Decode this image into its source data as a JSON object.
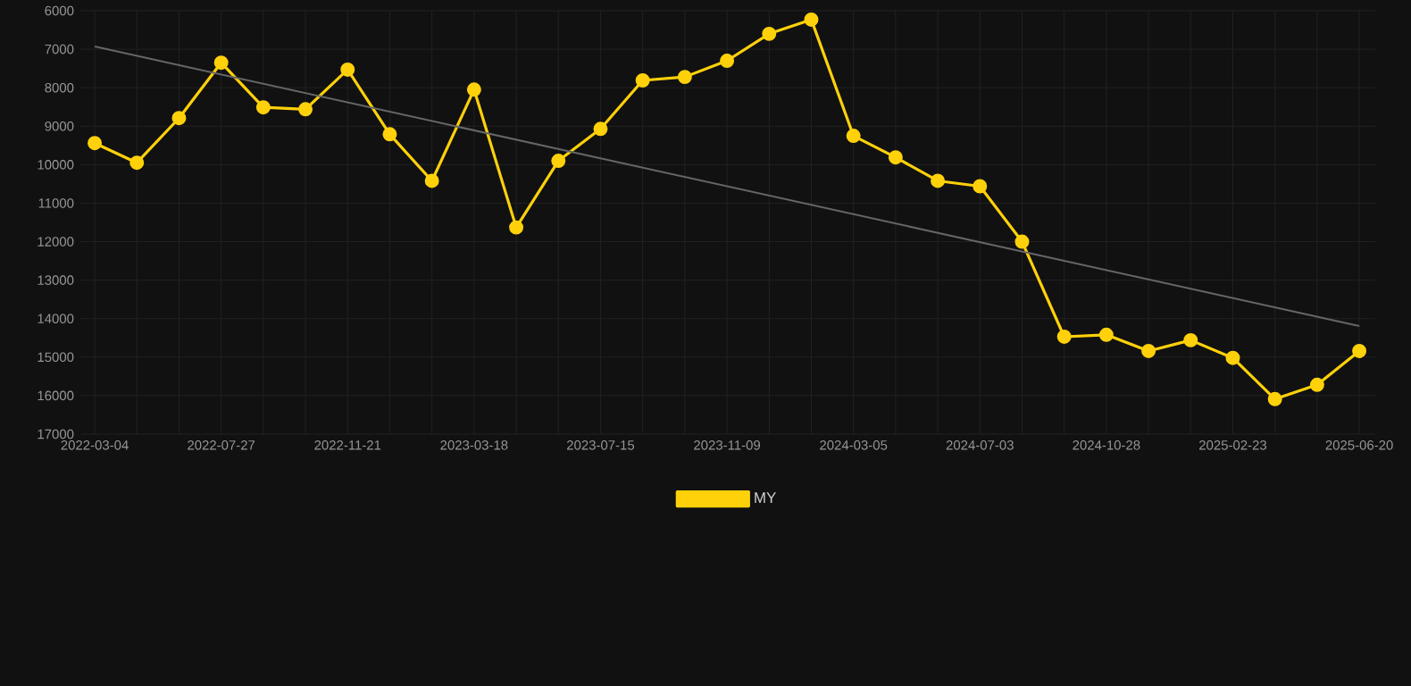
{
  "chart_data": {
    "type": "line",
    "categories": [
      "2022-03-04",
      null,
      null,
      "2022-07-27",
      null,
      null,
      "2022-11-21",
      null,
      null,
      "2023-03-18",
      null,
      null,
      "2023-07-15",
      null,
      null,
      "2023-11-09",
      null,
      null,
      "2024-03-05",
      null,
      null,
      "2024-07-03",
      null,
      null,
      "2024-10-28",
      null,
      null,
      "2025-02-23",
      null,
      null,
      "2025-06-20"
    ],
    "series": [
      {
        "name": "MY",
        "color": "#ffd10a",
        "marker": "circle",
        "values": [
          9440,
          9950,
          8790,
          7350,
          8510,
          8560,
          7530,
          9210,
          10420,
          8050,
          11630,
          9900,
          9070,
          7810,
          7720,
          7300,
          6600,
          6230,
          9250,
          9810,
          10420,
          10560,
          12000,
          14470,
          14420,
          14840,
          14560,
          15020,
          16090,
          15720,
          14840
        ]
      },
      {
        "type": "line",
        "color": "#666666",
        "marker": "none",
        "values": [
          6930,
          null,
          null,
          null,
          null,
          null,
          null,
          null,
          null,
          null,
          null,
          null,
          null,
          null,
          null,
          null,
          null,
          null,
          null,
          null,
          null,
          null,
          null,
          null,
          null,
          null,
          null,
          null,
          null,
          null,
          14190
        ]
      }
    ],
    "ylim": [
      17000,
      6000
    ],
    "yticks": [
      6000,
      7000,
      8000,
      9000,
      10000,
      11000,
      12000,
      13000,
      14000,
      15000,
      16000,
      17000
    ],
    "grid": true,
    "legend": "bottom"
  }
}
